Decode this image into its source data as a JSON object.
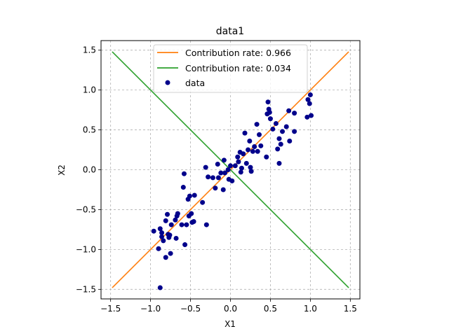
{
  "chart_data": {
    "type": "scatter",
    "title": "data1",
    "xlabel": "X1",
    "ylabel": "X2",
    "xlim": [
      -1.62,
      1.62
    ],
    "ylim": [
      -1.62,
      1.62
    ],
    "xticks": [
      -1.5,
      -1.0,
      -0.5,
      0.0,
      0.5,
      1.0,
      1.5
    ],
    "yticks": [
      -1.5,
      -1.0,
      -0.5,
      0.0,
      0.5,
      1.0,
      1.5
    ],
    "tick_labels": [
      "−1.5",
      "−1.0",
      "−0.5",
      "0.0",
      "0.5",
      "1.0",
      "1.5"
    ],
    "grid": true,
    "legend_position": "upper center",
    "lines": [
      {
        "name": "Contribution rate: 0.966",
        "color": "#ff7f0e",
        "x": [
          -1.48,
          1.48
        ],
        "y": [
          -1.48,
          1.48
        ]
      },
      {
        "name": "Contribution rate: 0.034",
        "color": "#2ca02c",
        "x": [
          -1.48,
          1.48
        ],
        "y": [
          1.48,
          -1.48
        ]
      }
    ],
    "scatter": {
      "name": "data",
      "color": "#00008b",
      "points": [
        [
          -0.96,
          -0.77
        ],
        [
          -0.9,
          -0.99
        ],
        [
          -0.88,
          -1.48
        ],
        [
          -0.88,
          -0.74
        ],
        [
          -0.86,
          -0.79
        ],
        [
          -0.86,
          -0.84
        ],
        [
          -0.84,
          -0.89
        ],
        [
          -0.81,
          -0.64
        ],
        [
          -0.81,
          -1.1
        ],
        [
          -0.79,
          -0.56
        ],
        [
          -0.78,
          -0.81
        ],
        [
          -0.77,
          -0.85
        ],
        [
          -0.76,
          -0.82
        ],
        [
          -0.75,
          -1.05
        ],
        [
          -0.74,
          -0.69
        ],
        [
          -0.69,
          -0.63
        ],
        [
          -0.68,
          -0.86
        ],
        [
          -0.67,
          -0.58
        ],
        [
          -0.66,
          -0.55
        ],
        [
          -0.61,
          -0.69
        ],
        [
          -0.59,
          -0.22
        ],
        [
          -0.58,
          -0.05
        ],
        [
          -0.57,
          -0.94
        ],
        [
          -0.55,
          -0.69
        ],
        [
          -0.53,
          -0.37
        ],
        [
          -0.52,
          -0.58
        ],
        [
          -0.51,
          -0.33
        ],
        [
          -0.49,
          -0.55
        ],
        [
          -0.48,
          -0.66
        ],
        [
          -0.46,
          -0.65
        ],
        [
          -0.45,
          -0.32
        ],
        [
          -0.35,
          -0.41
        ],
        [
          -0.31,
          0.03
        ],
        [
          -0.3,
          -0.69
        ],
        [
          -0.28,
          -0.09
        ],
        [
          -0.22,
          -0.1
        ],
        [
          -0.19,
          -0.23
        ],
        [
          -0.16,
          0.07
        ],
        [
          -0.15,
          -0.1
        ],
        [
          -0.12,
          -0.04
        ],
        [
          -0.09,
          -0.25
        ],
        [
          -0.08,
          0.12
        ],
        [
          -0.07,
          -0.04
        ],
        [
          -0.03,
          0.0
        ],
        [
          -0.02,
          -0.12
        ],
        [
          0.0,
          0.05
        ],
        [
          0.02,
          -0.14
        ],
        [
          0.06,
          0.05
        ],
        [
          0.09,
          0.16
        ],
        [
          0.1,
          0.1
        ],
        [
          0.12,
          0.22
        ],
        [
          0.13,
          -0.03
        ],
        [
          0.14,
          0.02
        ],
        [
          0.16,
          0.2
        ],
        [
          0.18,
          0.46
        ],
        [
          0.2,
          0.08
        ],
        [
          0.22,
          0.25
        ],
        [
          0.24,
          0.36
        ],
        [
          0.25,
          0.03
        ],
        [
          0.26,
          -0.02
        ],
        [
          0.28,
          0.23
        ],
        [
          0.3,
          0.29
        ],
        [
          0.33,
          0.57
        ],
        [
          0.34,
          0.23
        ],
        [
          0.36,
          0.44
        ],
        [
          0.38,
          0.3
        ],
        [
          0.45,
          0.16
        ],
        [
          0.46,
          0.7
        ],
        [
          0.47,
          0.85
        ],
        [
          0.48,
          0.76
        ],
        [
          0.49,
          0.72
        ],
        [
          0.5,
          0.64
        ],
        [
          0.53,
          0.51
        ],
        [
          0.57,
          0.58
        ],
        [
          0.59,
          0.26
        ],
        [
          0.61,
          0.08
        ],
        [
          0.61,
          0.39
        ],
        [
          0.63,
          0.32
        ],
        [
          0.65,
          0.48
        ],
        [
          0.7,
          0.54
        ],
        [
          0.73,
          0.74
        ],
        [
          0.74,
          0.36
        ],
        [
          0.8,
          0.48
        ],
        [
          0.8,
          0.71
        ],
        [
          0.96,
          0.66
        ],
        [
          0.97,
          0.88
        ],
        [
          0.99,
          0.83
        ],
        [
          1.0,
          0.94
        ],
        [
          1.01,
          0.68
        ]
      ]
    }
  }
}
